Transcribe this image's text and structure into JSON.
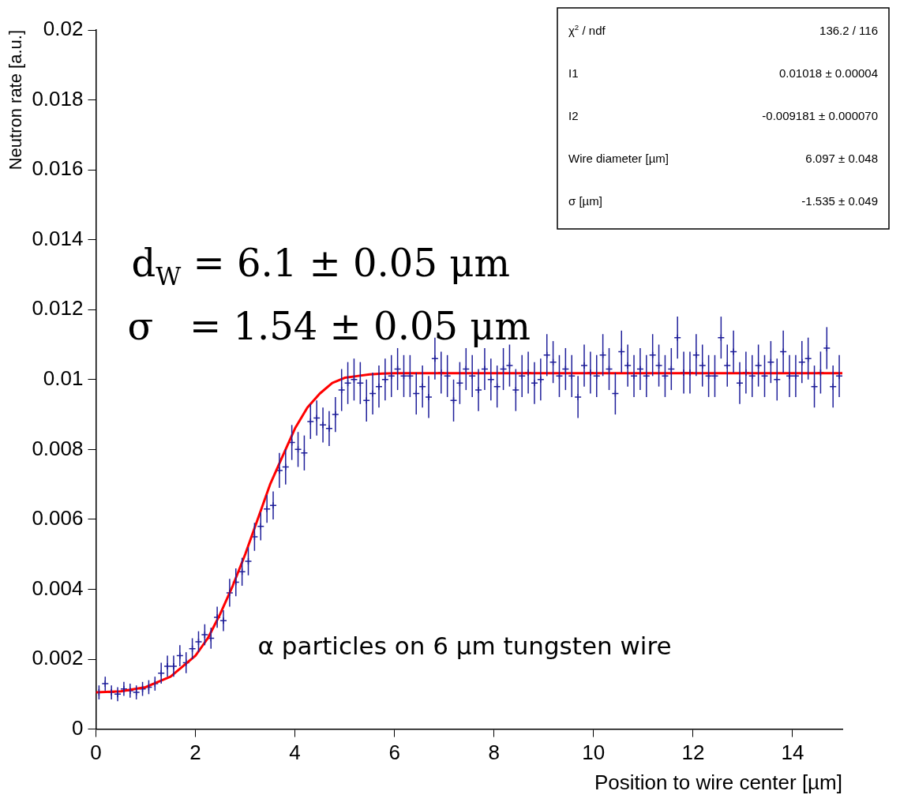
{
  "chart_data": {
    "type": "scatter",
    "xlabel": "Position to wire center [µm]",
    "ylabel": "Neutron rate [a.u.]",
    "xlim": [
      0,
      15
    ],
    "xticks": [
      0,
      2,
      4,
      6,
      8,
      10,
      12,
      14
    ],
    "ylim": [
      0,
      0.02
    ],
    "yticks": [
      0,
      0.002,
      0.004,
      0.006,
      0.008,
      0.01,
      0.012,
      0.014,
      0.016,
      0.018,
      0.02
    ],
    "grid": false,
    "legend": false,
    "marker": "cross",
    "series": [
      {
        "type": "scatter",
        "color": "#1f1f9a",
        "x": [
          0.0625,
          0.1875,
          0.3125,
          0.4375,
          0.5625,
          0.6875,
          0.8125,
          0.9375,
          1.0625,
          1.1875,
          1.3125,
          1.4375,
          1.5625,
          1.6875,
          1.8125,
          1.9375,
          2.0625,
          2.1875,
          2.3125,
          2.4375,
          2.5625,
          2.6875,
          2.8125,
          2.9375,
          3.0625,
          3.1875,
          3.3125,
          3.4375,
          3.5625,
          3.6875,
          3.8125,
          3.9375,
          4.0625,
          4.1875,
          4.3125,
          4.4375,
          4.5625,
          4.6875,
          4.8125,
          4.9375,
          5.0625,
          5.1875,
          5.3125,
          5.4375,
          5.5625,
          5.6875,
          5.8125,
          5.9375,
          6.0625,
          6.1875,
          6.3125,
          6.4375,
          6.5625,
          6.6875,
          6.8125,
          6.9375,
          7.0625,
          7.1875,
          7.3125,
          7.4375,
          7.5625,
          7.6875,
          7.8125,
          7.9375,
          8.0625,
          8.1875,
          8.3125,
          8.4375,
          8.5625,
          8.6875,
          8.8125,
          8.9375,
          9.0625,
          9.1875,
          9.3125,
          9.4375,
          9.5625,
          9.6875,
          9.8125,
          9.9375,
          10.0625,
          10.1875,
          10.3125,
          10.4375,
          10.5625,
          10.6875,
          10.8125,
          10.9375,
          11.0625,
          11.1875,
          11.3125,
          11.4375,
          11.5625,
          11.6875,
          11.8125,
          11.9375,
          12.0625,
          12.1875,
          12.3125,
          12.4375,
          12.5625,
          12.6875,
          12.8125,
          12.9375,
          13.0625,
          13.1875,
          13.3125,
          13.4375,
          13.5625,
          13.6875,
          13.8125,
          13.9375,
          14.0625,
          14.1875,
          14.3125,
          14.4375,
          14.5625,
          14.6875,
          14.8125,
          14.9375
        ],
        "values": [
          0.00105,
          0.0013,
          0.00105,
          0.001,
          0.00115,
          0.0011,
          0.00105,
          0.00115,
          0.0012,
          0.0013,
          0.0016,
          0.0018,
          0.0018,
          0.0021,
          0.0019,
          0.0023,
          0.0025,
          0.0027,
          0.0026,
          0.0032,
          0.0031,
          0.0039,
          0.0042,
          0.0045,
          0.0048,
          0.0055,
          0.0058,
          0.0063,
          0.0064,
          0.0074,
          0.0075,
          0.0082,
          0.008,
          0.0079,
          0.0088,
          0.0089,
          0.0087,
          0.0086,
          0.009,
          0.0097,
          0.0099,
          0.01,
          0.0099,
          0.0094,
          0.0096,
          0.0098,
          0.01,
          0.0101,
          0.0103,
          0.0101,
          0.0101,
          0.0096,
          0.0098,
          0.0095,
          0.0106,
          0.0102,
          0.0101,
          0.0094,
          0.0099,
          0.0103,
          0.0101,
          0.0097,
          0.0103,
          0.01,
          0.0098,
          0.0103,
          0.0104,
          0.0097,
          0.0101,
          0.0102,
          0.0099,
          0.01,
          0.0107,
          0.0105,
          0.0101,
          0.0103,
          0.0101,
          0.0095,
          0.0104,
          0.0102,
          0.0101,
          0.0107,
          0.0103,
          0.0096,
          0.0108,
          0.0104,
          0.0101,
          0.0103,
          0.0101,
          0.0107,
          0.0104,
          0.0101,
          0.0103,
          0.0112,
          0.0102,
          0.0102,
          0.0107,
          0.0104,
          0.0101,
          0.0101,
          0.0112,
          0.0104,
          0.0108,
          0.0099,
          0.0102,
          0.0101,
          0.0104,
          0.0101,
          0.0105,
          0.01,
          0.0108,
          0.0101,
          0.0101,
          0.0105,
          0.0106,
          0.0098,
          0.0102,
          0.0109,
          0.0098,
          0.0101
        ],
        "errors": [
          0.0002,
          0.0002,
          0.0002,
          0.0002,
          0.0002,
          0.0002,
          0.0002,
          0.0002,
          0.0002,
          0.0002,
          0.0003,
          0.0003,
          0.0003,
          0.0003,
          0.0003,
          0.0003,
          0.0003,
          0.0003,
          0.0003,
          0.0003,
          0.0003,
          0.0004,
          0.0004,
          0.0004,
          0.0004,
          0.0004,
          0.0004,
          0.0004,
          0.0004,
          0.0005,
          0.0005,
          0.0005,
          0.0005,
          0.0005,
          0.0005,
          0.0005,
          0.0005,
          0.0005,
          0.0005,
          0.0006,
          0.0006,
          0.0006,
          0.0006,
          0.0006,
          0.0006,
          0.0006,
          0.0006,
          0.0006,
          0.0006,
          0.0006,
          0.0006,
          0.0006,
          0.0006,
          0.0006,
          0.0006,
          0.0006,
          0.0006,
          0.0006,
          0.0006,
          0.0006,
          0.0006,
          0.0006,
          0.0006,
          0.0006,
          0.0006,
          0.0006,
          0.0006,
          0.0006,
          0.0006,
          0.0006,
          0.0006,
          0.0006,
          0.0006,
          0.0006,
          0.0006,
          0.0006,
          0.0006,
          0.0006,
          0.0006,
          0.0006,
          0.0006,
          0.0006,
          0.0006,
          0.0006,
          0.0006,
          0.0006,
          0.0006,
          0.0006,
          0.0006,
          0.0006,
          0.0006,
          0.0006,
          0.0006,
          0.0006,
          0.0006,
          0.0006,
          0.0006,
          0.0006,
          0.0006,
          0.0006,
          0.0006,
          0.0006,
          0.0006,
          0.0006,
          0.0006,
          0.0006,
          0.0006,
          0.0006,
          0.0006,
          0.0006,
          0.0006,
          0.0006,
          0.0006,
          0.0006,
          0.0006,
          0.0006,
          0.0006,
          0.0006,
          0.0006,
          0.0006
        ]
      },
      {
        "type": "line",
        "color": "#ff0000",
        "marker": "none",
        "line_style": "solid",
        "x": [
          0,
          0.5,
          1,
          1.5,
          2,
          2.25,
          2.5,
          2.75,
          3,
          3.25,
          3.5,
          3.75,
          4,
          4.25,
          4.5,
          4.75,
          5,
          5.25,
          5.5,
          5.75,
          6,
          6.5,
          15
        ],
        "values": [
          0.00105,
          0.00108,
          0.0012,
          0.0015,
          0.0021,
          0.0026,
          0.0033,
          0.0041,
          0.005,
          0.006,
          0.007,
          0.0078,
          0.0086,
          0.0092,
          0.0096,
          0.0099,
          0.01005,
          0.0101,
          0.01015,
          0.01017,
          0.01018,
          0.01018,
          0.01018
        ]
      }
    ],
    "annotations": [
      "d$_{W}$ = 6.1 ± 0.05 μm",
      "σ   = 1.54 ± 0.05 μm",
      "α particles on 6 µm tungsten wire",
      "χ$^{2}$ / ndf",
      "136.2 / 116",
      "I1",
      "0.01018 ± 0.00004",
      "I2",
      "-0.009181 ± 0.000070",
      "Wire diameter [µm]",
      "6.097 ± 0.048",
      "σ [µm]",
      "-1.535 ± 0.049"
    ]
  }
}
